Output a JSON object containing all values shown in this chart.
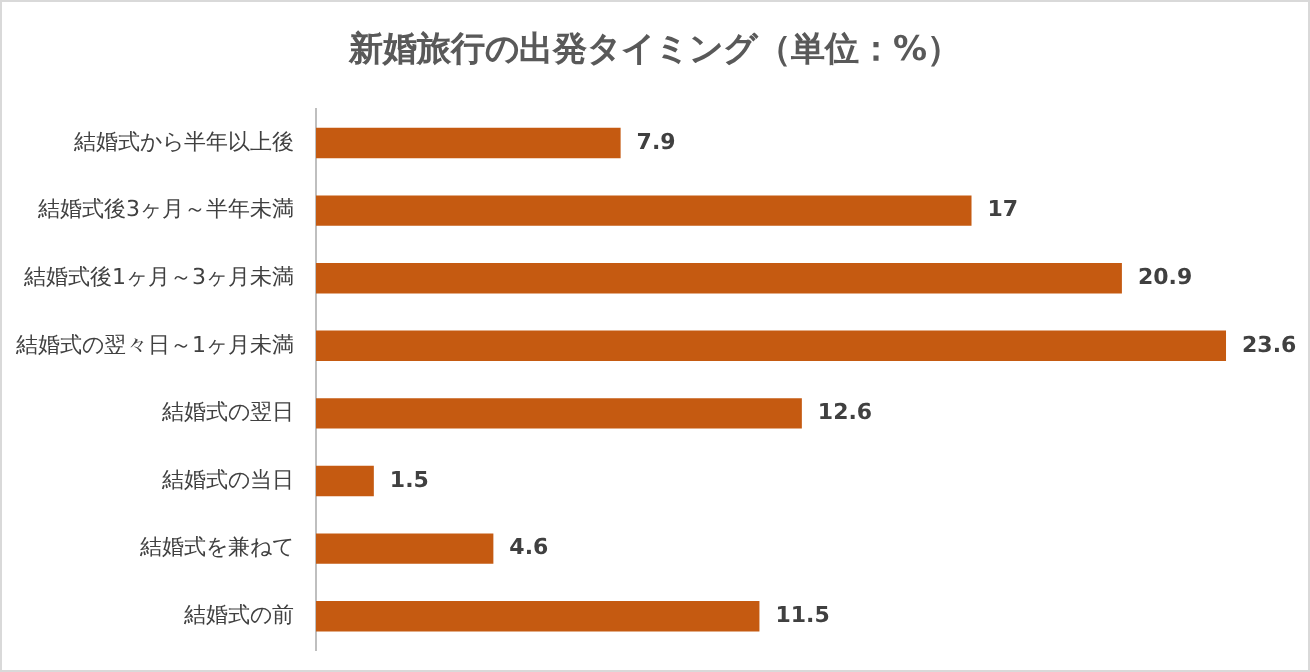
{
  "chart_data": {
    "type": "bar",
    "orientation": "horizontal",
    "title": "新婚旅行の出発タイミング（単位：%）",
    "categories": [
      "結婚式から半年以上後",
      "結婚式後3ヶ月～半年未満",
      "結婚式後1ヶ月～3ヶ月未満",
      "結婚式の翌々日～1ヶ月未満",
      "結婚式の翌日",
      "結婚式の当日",
      "結婚式を兼ねて",
      "結婚式の前"
    ],
    "values": [
      7.9,
      17,
      20.9,
      23.6,
      12.6,
      1.5,
      4.6,
      11.5
    ],
    "color": "#c55a11",
    "data_labels": true,
    "legend": false
  }
}
